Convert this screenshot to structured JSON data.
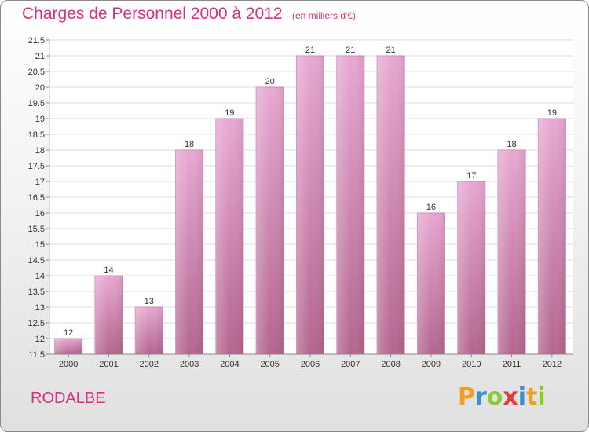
{
  "title": "Charges de Personnel 2000 à 2012",
  "subtitle": "(en milliers d'€)",
  "commune": "RODALBE",
  "logo": {
    "letters": [
      "P",
      "r",
      "o",
      "x",
      "i",
      "t",
      "i"
    ],
    "colors": [
      "#f0a020",
      "#3a8fd0",
      "#8cc83c",
      "#e23a3a",
      "#3a8fd0",
      "#f0a020",
      "#8cc83c"
    ]
  },
  "colors": {
    "bar_top": "#e8a8d2",
    "bar_bottom": "#b3668f",
    "title": "#d4327e"
  },
  "chart_data": {
    "type": "bar",
    "title": "Charges de Personnel 2000 à 2012",
    "subtitle": "(en milliers d'€)",
    "categories": [
      "2000",
      "2001",
      "2002",
      "2003",
      "2004",
      "2005",
      "2006",
      "2007",
      "2008",
      "2009",
      "2010",
      "2011",
      "2012"
    ],
    "values": [
      12,
      14,
      13,
      18,
      19,
      20,
      21,
      21,
      21,
      16,
      17,
      18,
      19
    ],
    "ylim": [
      11.5,
      21.5
    ],
    "yticks": [
      "11.5",
      "12",
      "12.5",
      "13",
      "13.5",
      "14",
      "14.5",
      "15",
      "15.5",
      "16",
      "16.5",
      "17",
      "17.5",
      "18",
      "18.5",
      "19",
      "19.5",
      "20",
      "20.5",
      "21",
      "21.5"
    ],
    "grid": true,
    "xlabel": "",
    "ylabel": ""
  }
}
